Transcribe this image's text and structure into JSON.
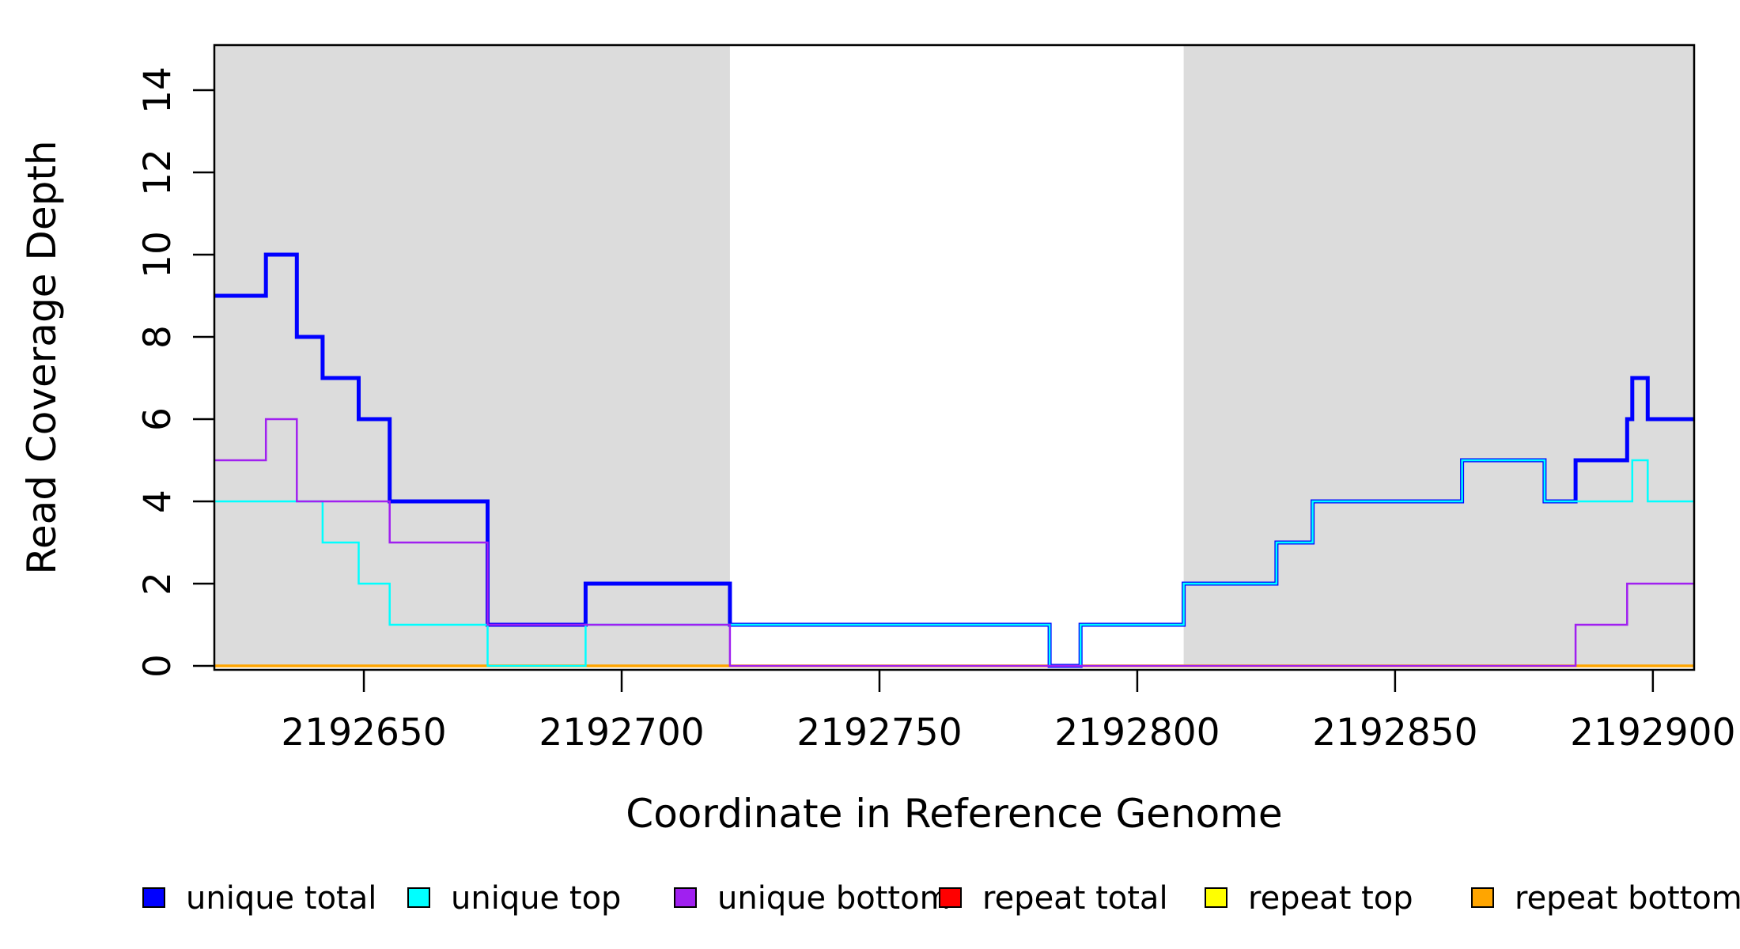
{
  "figure": {
    "kind": "read-coverage-step-plot"
  },
  "chart_data": {
    "type": "line",
    "step_style": "post",
    "title": "",
    "xlabel": "Coordinate in Reference Genome",
    "ylabel": "Read Coverage Depth",
    "xlim": [
      2192621,
      2192908
    ],
    "ylim": [
      0,
      15.1
    ],
    "x_ticks": [
      2192650,
      2192700,
      2192750,
      2192800,
      2192850,
      2192900
    ],
    "x_tick_labels": [
      "2192650",
      "2192700",
      "2192750",
      "2192800",
      "2192850",
      "2192900"
    ],
    "y_ticks": [
      0,
      2,
      4,
      6,
      8,
      10,
      12,
      14
    ],
    "y_tick_labels": [
      "0",
      "2",
      "4",
      "6",
      "8",
      "10",
      "12",
      "14"
    ],
    "grid": false,
    "background_color": "#FFFFFF",
    "shaded_regions": [
      {
        "x0": 2192621,
        "x1": 2192721,
        "color": "#DCDCDC"
      },
      {
        "x0": 2192809,
        "x1": 2192908,
        "color": "#DCDCDC"
      }
    ],
    "series": [
      {
        "name": "repeat total",
        "color": "#FF0000",
        "width": 2,
        "points": [
          [
            2192621,
            0
          ]
        ]
      },
      {
        "name": "repeat top",
        "color": "#FFFF00",
        "width": 2,
        "points": [
          [
            2192621,
            0
          ]
        ]
      },
      {
        "name": "repeat bottom",
        "color": "#FFA500",
        "width": 3.5,
        "points": [
          [
            2192621,
            0
          ]
        ]
      },
      {
        "name": "unique total",
        "color": "#0000FF",
        "width": 5,
        "points": [
          [
            2192621,
            9
          ],
          [
            2192631,
            10
          ],
          [
            2192637,
            8
          ],
          [
            2192642,
            7
          ],
          [
            2192649,
            6
          ],
          [
            2192655,
            4
          ],
          [
            2192674,
            1
          ],
          [
            2192693,
            2
          ],
          [
            2192721,
            1
          ],
          [
            2192783,
            0
          ],
          [
            2192789,
            1
          ],
          [
            2192809,
            2
          ],
          [
            2192827,
            3
          ],
          [
            2192834,
            4
          ],
          [
            2192863,
            5
          ],
          [
            2192879,
            4
          ],
          [
            2192885,
            5
          ],
          [
            2192895,
            6
          ],
          [
            2192896,
            7
          ],
          [
            2192899,
            6
          ]
        ]
      },
      {
        "name": "unique top",
        "color": "#00FFFF",
        "width": 2.5,
        "points": [
          [
            2192621,
            4
          ],
          [
            2192642,
            3
          ],
          [
            2192649,
            2
          ],
          [
            2192655,
            1
          ],
          [
            2192674,
            0
          ],
          [
            2192693,
            1
          ],
          [
            2192783,
            0
          ],
          [
            2192789,
            1
          ],
          [
            2192809,
            2
          ],
          [
            2192827,
            3
          ],
          [
            2192834,
            4
          ],
          [
            2192863,
            5
          ],
          [
            2192879,
            4
          ],
          [
            2192896,
            5
          ],
          [
            2192899,
            4
          ]
        ]
      },
      {
        "name": "unique bottom",
        "color": "#A020F0",
        "width": 2.5,
        "points": [
          [
            2192621,
            5
          ],
          [
            2192631,
            6
          ],
          [
            2192637,
            4
          ],
          [
            2192655,
            3
          ],
          [
            2192674,
            1
          ],
          [
            2192721,
            0
          ],
          [
            2192885,
            1
          ],
          [
            2192895,
            2
          ]
        ]
      }
    ],
    "legend": {
      "position": "bottom",
      "entries": [
        {
          "label": "unique total",
          "color": "#0000FF"
        },
        {
          "label": "unique top",
          "color": "#00FFFF"
        },
        {
          "label": "unique bottom",
          "color": "#A020F0"
        },
        {
          "label": "repeat total",
          "color": "#FF0000"
        },
        {
          "label": "repeat top",
          "color": "#FFFF00"
        },
        {
          "label": "repeat bottom",
          "color": "#FFA500"
        }
      ]
    }
  }
}
